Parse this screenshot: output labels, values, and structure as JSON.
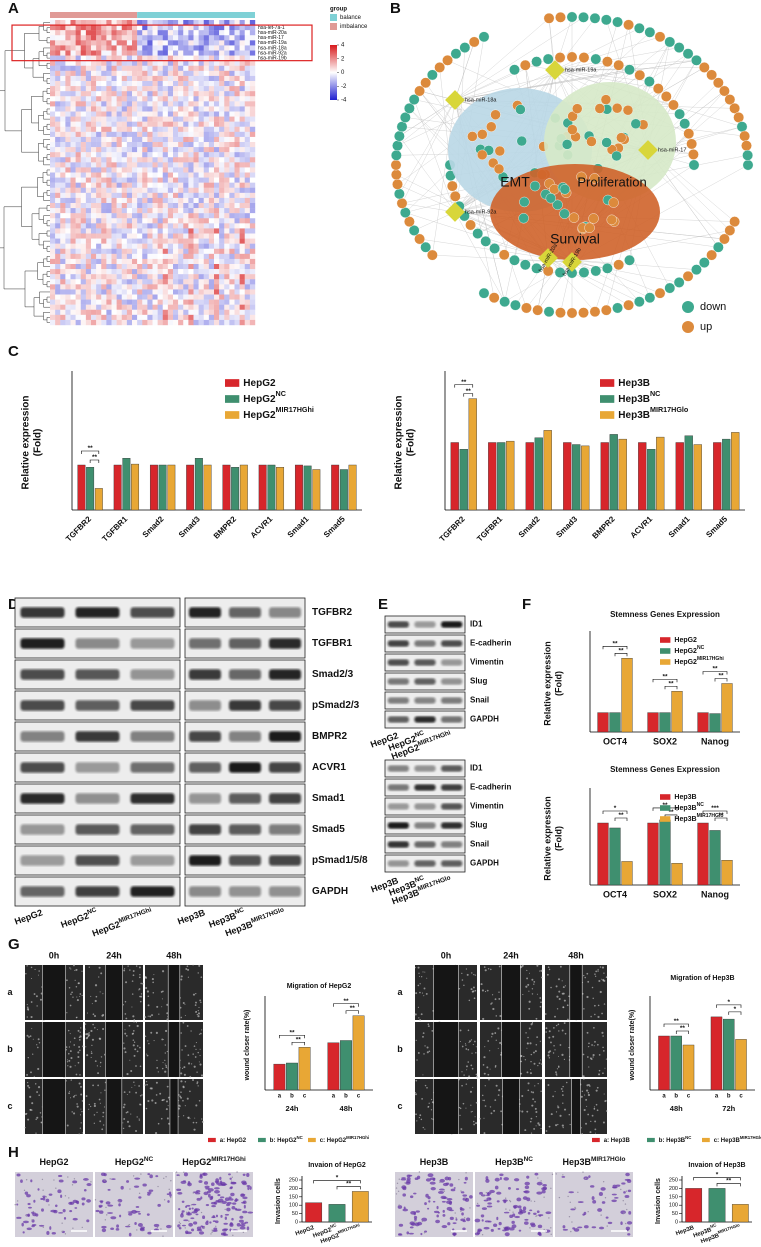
{
  "panel_labels": [
    "A",
    "B",
    "C",
    "D",
    "E",
    "F",
    "G",
    "H"
  ],
  "heatmap": {
    "group_title": "group",
    "groups": [
      {
        "name": "balance",
        "color": "#7fd1d6"
      },
      {
        "name": "imbalance",
        "color": "#e09a96"
      }
    ],
    "scale_ticks": [
      4,
      2,
      0,
      -2,
      -4
    ],
    "row_labels": [
      "hsa-let-7a-1",
      "hsa-miR-20a",
      "hsa-miR-17",
      "hsa-miR-19a",
      "hsa-miR-18a",
      "hsa-miR-92a",
      "hsa-miR-19b"
    ]
  },
  "network": {
    "modules": [
      "EMT",
      "Proliferation",
      "Survival"
    ],
    "mirnas": [
      "hsa-miR-19a",
      "hsa-miR-18a",
      "hsa-miR-17",
      "hsa-miR-92a",
      "hsa-miR-20a",
      "hsa-miR-19b"
    ],
    "legend": [
      {
        "name": "down",
        "color": "#3ea98f"
      },
      {
        "name": "up",
        "color": "#dc8a3c"
      }
    ]
  },
  "charts": {
    "c_hepg2": {
      "type": "bar",
      "ylabel": [
        "Relative expression",
        "(Fold)"
      ],
      "categories": [
        "TGFBR2",
        "TGFBR1",
        "Smad2",
        "Smad3",
        "BMPR2",
        "ACVR1",
        "Smad1",
        "Smad5"
      ],
      "ylim": [
        0,
        3
      ],
      "series": [
        {
          "name": "HepG2",
          "color": "#d7262b",
          "values": [
            1,
            1,
            1,
            1,
            1,
            1,
            1,
            1
          ]
        },
        {
          "name": "HepG2",
          "sup": "NC",
          "color": "#3f8f6f",
          "values": [
            0.95,
            1.15,
            1,
            1.15,
            0.95,
            1,
            0.98,
            0.9
          ]
        },
        {
          "name": "HepG2",
          "sup": "MIR17HGhi",
          "color": "#e8a735",
          "values": [
            0.48,
            1.02,
            1,
            1,
            1,
            0.95,
            0.9,
            1
          ]
        }
      ],
      "annotations": [
        "**",
        "**"
      ]
    },
    "c_hep3b": {
      "type": "bar",
      "ylabel": [
        "Relative expression",
        "(Fold)"
      ],
      "categories": [
        "TGFBR2",
        "TGFBR1",
        "Smad2",
        "Smad3",
        "BMPR2",
        "ACVR1",
        "Smad1",
        "Smad5"
      ],
      "ylim": [
        0,
        2
      ],
      "series": [
        {
          "name": "Hep3B",
          "color": "#d7262b",
          "values": [
            1,
            1,
            1,
            1,
            1,
            1,
            1,
            1
          ]
        },
        {
          "name": "Hep3B",
          "sup": "NC",
          "color": "#3f8f6f",
          "values": [
            0.9,
            1,
            1.07,
            0.97,
            1.12,
            0.9,
            1.1,
            1.05
          ]
        },
        {
          "name": "Hep3B",
          "sup": "MIR17HGlo",
          "color": "#e8a735",
          "values": [
            1.65,
            1.02,
            1.18,
            0.95,
            1.05,
            1.08,
            0.97,
            1.15
          ]
        }
      ],
      "annotations": [
        "**",
        "**"
      ]
    },
    "f_hepg2": {
      "type": "bar",
      "title": "Stemness Genes Expression",
      "ylabel": [
        "Relative expression",
        "(Fold)"
      ],
      "categories": [
        "OCT4",
        "SOX2",
        "Nanog"
      ],
      "ylim": [
        0,
        5
      ],
      "series": [
        {
          "name": "HepG2",
          "color": "#d7262b",
          "values": [
            1,
            1,
            1
          ]
        },
        {
          "name": "HepG2",
          "sup": "NC",
          "color": "#3f8f6f",
          "values": [
            1,
            1,
            0.95
          ]
        },
        {
          "name": "HepG2",
          "sup": "MIR17HGhi",
          "color": "#e8a735",
          "values": [
            3.8,
            2.1,
            2.5
          ]
        }
      ],
      "annotations": [
        "**",
        "**",
        "**",
        "**",
        "**",
        "**"
      ]
    },
    "f_hep3b": {
      "type": "bar",
      "title": "Stemness Genes Expression",
      "ylabel": [
        "Relative expression",
        "(Fold)"
      ],
      "categories": [
        "OCT4",
        "SOX2",
        "Nanog"
      ],
      "ylim": [
        0,
        1.5
      ],
      "series": [
        {
          "name": "Hep3B",
          "color": "#d7262b",
          "values": [
            1,
            1,
            1
          ]
        },
        {
          "name": "Hep3B",
          "sup": "NC",
          "color": "#3f8f6f",
          "values": [
            0.92,
            1.05,
            0.88
          ]
        },
        {
          "name": "Hep3B",
          "sup": "MIR17HGlo",
          "color": "#e8a735",
          "values": [
            0.38,
            0.35,
            0.4
          ]
        }
      ],
      "annotations": [
        "**",
        "*",
        "**",
        "**",
        "**",
        "***"
      ]
    },
    "g_hepg2": {
      "type": "bar",
      "title": "Migration of HepG2",
      "ylabel": [
        "wound closer rate(%)"
      ],
      "categories": [
        "24h",
        "48h"
      ],
      "bar_labels": [
        "a",
        "b",
        "c"
      ],
      "ylim": [
        0,
        80
      ],
      "series": [
        {
          "name": "a: HepG2",
          "color": "#d7262b",
          "values": [
            23,
            42
          ]
        },
        {
          "name": "b: HepG2",
          "sup": "NC",
          "color": "#3f8f6f",
          "values": [
            24,
            44
          ]
        },
        {
          "name": "c: HepG2",
          "sup": "MIR17HGhi",
          "color": "#e8a735",
          "values": [
            38,
            66
          ]
        }
      ],
      "annotations": [
        "**",
        "**",
        "**",
        "**"
      ]
    },
    "g_hep3b": {
      "type": "bar",
      "title": "Migration of Hep3B",
      "ylabel": [
        "wound closer rate(%)"
      ],
      "categories": [
        "48h",
        "72h"
      ],
      "bar_labels": [
        "a",
        "b",
        "c"
      ],
      "ylim": [
        0,
        80
      ],
      "series": [
        {
          "name": "a: Hep3B",
          "color": "#d7262b",
          "values": [
            48,
            65
          ]
        },
        {
          "name": "b: Hep3B",
          "sup": "NC",
          "color": "#3f8f6f",
          "values": [
            48,
            63
          ]
        },
        {
          "name": "c: Hep3B",
          "sup": "MIR17HGlo",
          "color": "#e8a735",
          "values": [
            40,
            45
          ]
        }
      ],
      "annotations": [
        "**",
        "**",
        "*",
        "*"
      ]
    },
    "h_hepg2": {
      "type": "bar",
      "title": "Invaion of HepG2",
      "ylabel": [
        "Invasion cells"
      ],
      "categories": [
        {
          "text": "HepG2"
        },
        {
          "text": "HepG2",
          "sup": "NC"
        },
        {
          "text": "HepG2",
          "sup": "MIR17HGhi"
        }
      ],
      "values": [
        115,
        105,
        182
      ],
      "colors": [
        "#d7262b",
        "#3f8f6f",
        "#e8a735"
      ],
      "ylim": [
        0,
        250
      ],
      "yticks": [
        0,
        50,
        100,
        150,
        200,
        250
      ],
      "annotations": [
        "**",
        "*"
      ]
    },
    "h_hep3b": {
      "type": "bar",
      "title": "Invaion of Hep3B",
      "ylabel": [
        "Invasion cells"
      ],
      "categories": [
        {
          "text": "Hep3B"
        },
        {
          "text": "Hep3B",
          "sup": "NC"
        },
        {
          "text": "Hep3B",
          "sup": "MIR17HGlo"
        }
      ],
      "values": [
        200,
        200,
        105
      ],
      "colors": [
        "#d7262b",
        "#3f8f6f",
        "#e8a735"
      ],
      "ylim": [
        0,
        250
      ],
      "yticks": [
        0,
        50,
        100,
        150,
        200,
        250
      ],
      "annotations": [
        "*",
        "**"
      ]
    }
  },
  "blots": {
    "d": {
      "rows": [
        "TGFBR2",
        "TGFBR1",
        "Smad2/3",
        "pSmad2/3",
        "BMPR2",
        "ACVR1",
        "Smad1",
        "Smad5",
        "pSmad1/5/8",
        "GAPDH"
      ],
      "lanes": [
        {
          "text": "HepG2"
        },
        {
          "text": "HepG2",
          "sup": "NC"
        },
        {
          "text": "HepG2",
          "sup": "MIR17HGhi"
        },
        {
          "text": "Hep3B"
        },
        {
          "text": "Hep3B",
          "sup": "NC"
        },
        {
          "text": "Hep3B",
          "sup": "MIR17HGlo"
        }
      ]
    },
    "e_hepg2": {
      "rows": [
        "ID1",
        "E-cadherin",
        "Vimentin",
        "Slug",
        "Snail",
        "GAPDH"
      ],
      "lanes": [
        {
          "text": "HepG2"
        },
        {
          "text": "HepG2",
          "sup": "NC"
        },
        {
          "text": "HepG2",
          "sup": "MIR17HGhi"
        }
      ]
    },
    "e_hep3b": {
      "rows": [
        "ID1",
        "E-cadherin",
        "Vimentin",
        "Slug",
        "Snail",
        "GAPDH"
      ],
      "lanes": [
        {
          "text": "Hep3B"
        },
        {
          "text": "Hep3B",
          "sup": "NC"
        },
        {
          "text": "Hep3B",
          "sup": "MIR17HGlo"
        }
      ]
    }
  },
  "migration": {
    "hepg2": {
      "times": [
        "0h",
        "24h",
        "48h"
      ],
      "rows": [
        "a",
        "b",
        "c"
      ]
    },
    "hep3b": {
      "times": [
        "0h",
        "24h",
        "48h"
      ],
      "rows": [
        "a",
        "b",
        "c"
      ]
    }
  },
  "invasion": {
    "hepg2": [
      {
        "text": "HepG2"
      },
      {
        "text": "HepG2",
        "sup": "NC"
      },
      {
        "text": "HepG2",
        "sup": "MIR17HGhi"
      }
    ],
    "hep3b": [
      {
        "text": "Hep3B"
      },
      {
        "text": "Hep3B",
        "sup": "NC"
      },
      {
        "text": "Hep3B",
        "sup": "MIR17HGlo"
      }
    ]
  }
}
